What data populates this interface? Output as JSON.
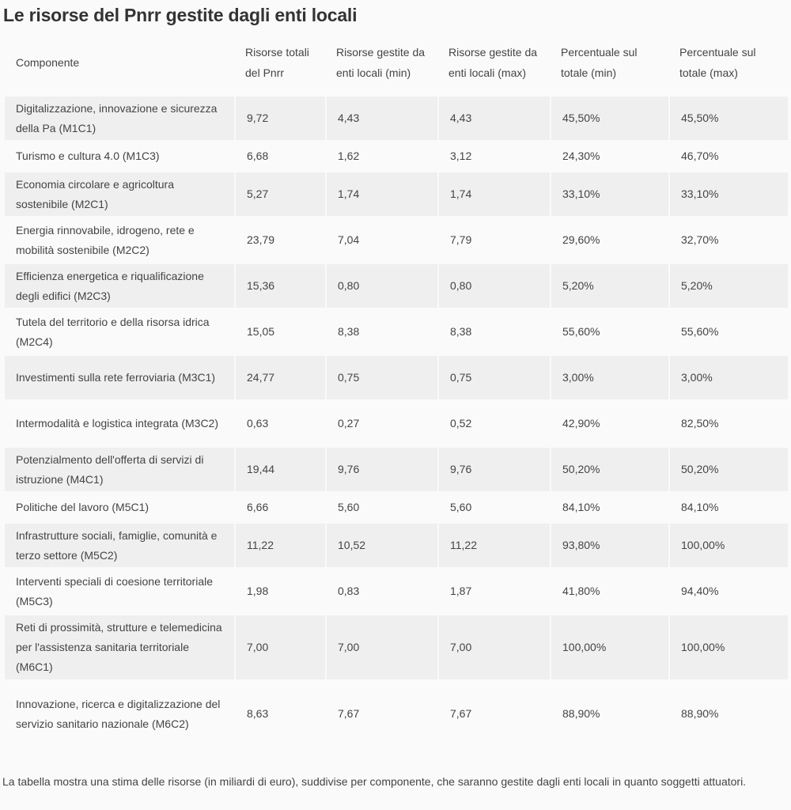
{
  "title": "Le risorse del Pnrr gestite dagli enti locali",
  "table": {
    "headers": [
      "Componente",
      "Risorse totali del Pnrr",
      "Risorse gestite da enti locali (min)",
      "Risorse gestite da enti locali (max)",
      "Percentuale sul totale (min)",
      "Percentuale sul totale (max)"
    ],
    "rows": [
      [
        "Digitalizzazione, innovazione e sicurezza della Pa (M1C1)",
        "9,72",
        "4,43",
        "4,43",
        "45,50%",
        "45,50%"
      ],
      [
        "Turismo e cultura 4.0 (M1C3)",
        "6,68",
        "1,62",
        "3,12",
        "24,30%",
        "46,70%"
      ],
      [
        "Economia circolare e agricoltura sostenibile (M2C1)",
        "5,27",
        "1,74",
        "1,74",
        "33,10%",
        "33,10%"
      ],
      [
        "Energia rinnovabile, idrogeno, rete e mobilità sostenibile (M2C2)",
        "23,79",
        "7,04",
        "7,79",
        "29,60%",
        "32,70%"
      ],
      [
        "Efficienza energetica e riqualificazione degli edifici (M2C3)",
        "15,36",
        "0,80",
        "0,80",
        "5,20%",
        "5,20%"
      ],
      [
        "Tutela del territorio e della risorsa idrica (M2C4)",
        "15,05",
        "8,38",
        "8,38",
        "55,60%",
        "55,60%"
      ],
      [
        "Investimenti sulla rete ferroviaria (M3C1)",
        "24,77",
        "0,75",
        "0,75",
        "3,00%",
        "3,00%"
      ],
      [
        "Intermodalità e logistica integrata (M3C2)",
        "0,63",
        "0,27",
        "0,52",
        "42,90%",
        "82,50%"
      ],
      [
        "Potenzialmento dell'offerta di servizi di istruzione (M4C1)",
        "19,44",
        "9,76",
        "9,76",
        "50,20%",
        "50,20%"
      ],
      [
        "Politiche del lavoro (M5C1)",
        "6,66",
        "5,60",
        "5,60",
        "84,10%",
        "84,10%"
      ],
      [
        "Infrastrutture sociali, famiglie, comunità e terzo settore (M5C2)",
        "11,22",
        "10,52",
        "11,22",
        "93,80%",
        "100,00%"
      ],
      [
        "Interventi speciali di coesione territoriale (M5C3)",
        "1,98",
        "0,83",
        "1,87",
        "41,80%",
        "94,40%"
      ],
      [
        "Reti di prossimità, strutture e telemedicina per l'assistenza sanitaria territoriale (M6C1)",
        "7,00",
        "7,00",
        "7,00",
        "100,00%",
        "100,00%"
      ],
      [
        "Innovazione, ricerca e digitalizzazione del servizio sanitario nazionale (M6C2)",
        "8,63",
        "7,67",
        "7,67",
        "88,90%",
        "88,90%"
      ]
    ]
  },
  "note": "La tabella mostra una stima delle risorse (in miliardi di euro), suddivise per componente, che saranno gestite dagli enti locali in quanto soggetti attuatori.",
  "colors": {
    "background": "#fafafa",
    "stripe": "#efefef",
    "text": "#444444"
  }
}
